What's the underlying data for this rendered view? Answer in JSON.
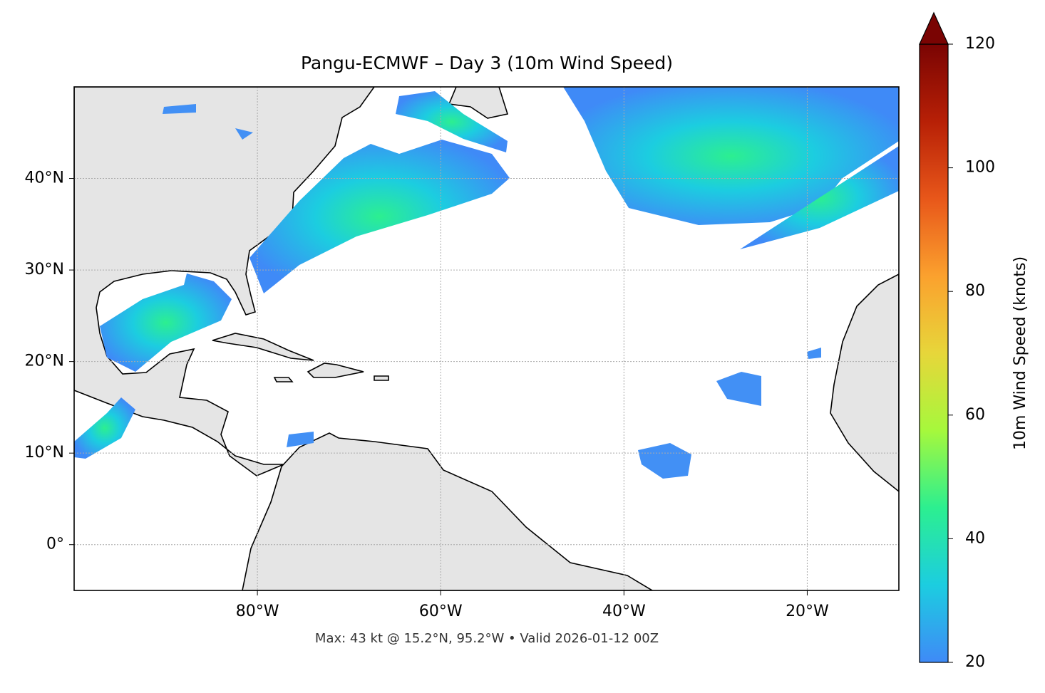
{
  "chart_data": {
    "type": "map",
    "title": "Pangu-ECMWF – Day 3 (10m Wind Speed)",
    "footer": "Max: 43 kt @ 15.2°N, 95.2°W • Valid 2026-01-12 00Z",
    "xlim": [
      -100,
      -10
    ],
    "ylim": [
      -5,
      50
    ],
    "xticks": [
      {
        "value": -80,
        "label": "80°W"
      },
      {
        "value": -60,
        "label": "60°W"
      },
      {
        "value": -40,
        "label": "40°W"
      },
      {
        "value": -20,
        "label": "20°W"
      }
    ],
    "yticks": [
      {
        "value": 0,
        "label": "0°"
      },
      {
        "value": 10,
        "label": "10°N"
      },
      {
        "value": 20,
        "label": "20°N"
      },
      {
        "value": 30,
        "label": "30°N"
      },
      {
        "value": 40,
        "label": "40°N"
      }
    ],
    "grid": true,
    "colorbar": {
      "label": "10m Wind Speed (knots)",
      "clim": [
        20,
        120
      ],
      "ticks": [
        20,
        40,
        60,
        80,
        100,
        120
      ],
      "colormap": [
        "#3f8af7",
        "#1ccde0",
        "#2cef90",
        "#a6f83c",
        "#e7d63a",
        "#fba12e",
        "#e8571a",
        "#b72006",
        "#7a0403"
      ]
    }
  }
}
